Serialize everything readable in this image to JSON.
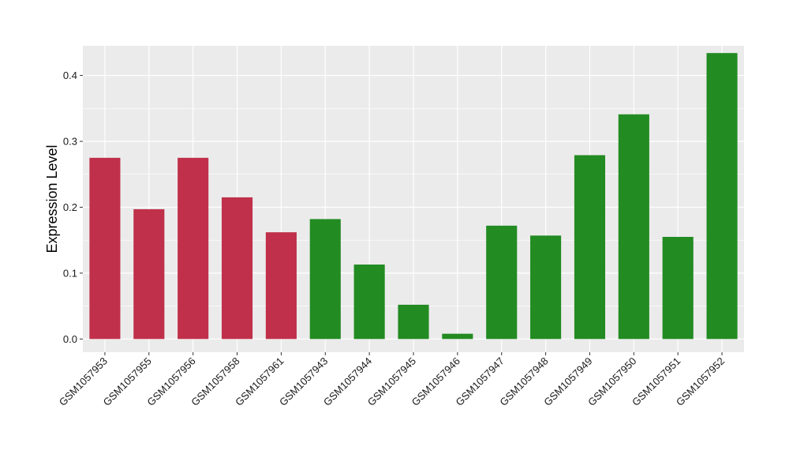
{
  "chart_data": {
    "type": "bar",
    "title": "",
    "xlabel": "",
    "ylabel": "Expression Level",
    "ylim": [
      -0.02,
      0.445
    ],
    "yticks": [
      0.0,
      0.1,
      0.2,
      0.3,
      0.4
    ],
    "ytick_labels": [
      "0.0",
      "0.1",
      "0.2",
      "0.3",
      "0.4"
    ],
    "grid": true,
    "categories": [
      "GSM1057953",
      "GSM1057955",
      "GSM1057956",
      "GSM1057958",
      "GSM1057961",
      "GSM1057943",
      "GSM1057944",
      "GSM1057945",
      "GSM1057946",
      "GSM1057947",
      "GSM1057948",
      "GSM1057949",
      "GSM1057950",
      "GSM1057951",
      "GSM1057952"
    ],
    "values": [
      0.275,
      0.197,
      0.275,
      0.215,
      0.162,
      0.182,
      0.113,
      0.052,
      0.008,
      0.172,
      0.157,
      0.279,
      0.341,
      0.155,
      0.434
    ],
    "colors": [
      "#c0304a",
      "#c0304a",
      "#c0304a",
      "#c0304a",
      "#c0304a",
      "#228b22",
      "#228b22",
      "#228b22",
      "#228b22",
      "#228b22",
      "#228b22",
      "#228b22",
      "#228b22",
      "#228b22",
      "#228b22"
    ],
    "panel_background": "#ebebeb",
    "grid_color": "#ffffff"
  }
}
